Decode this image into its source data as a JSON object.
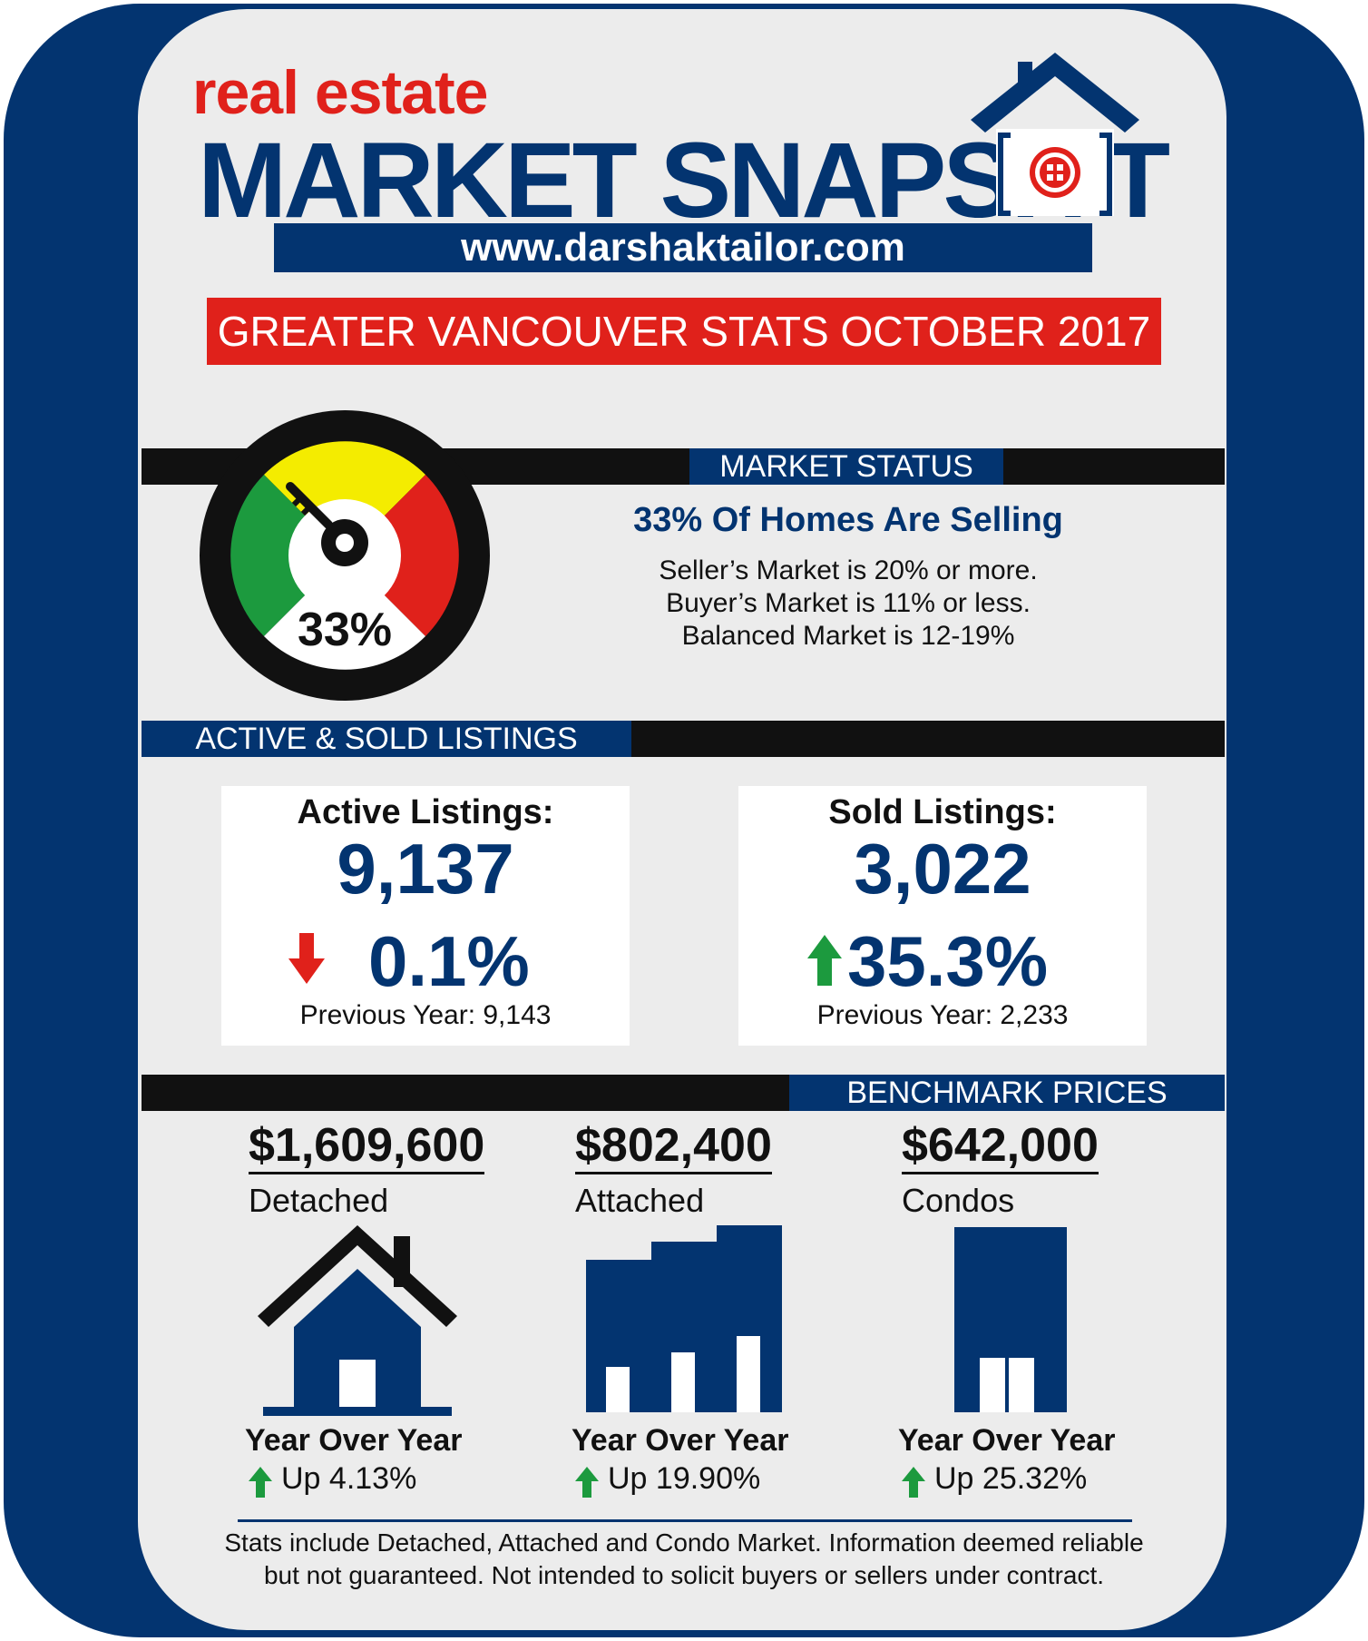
{
  "header": {
    "title_small": "real estate",
    "title_big": "MARKET SNAPSH",
    "title_big_end": "T",
    "url": "www.darshaktailor.com",
    "banner": "GREATER VANCOUVER STATS OCTOBER 2017"
  },
  "market_status": {
    "label": "MARKET STATUS",
    "headline": "33% Of Homes Are Selling",
    "line1": "Seller’s Market is 20% or more.",
    "line2": "Buyer’s Market is 11% or less.",
    "line3": "Balanced Market is 12-19%",
    "gauge_value": "33%",
    "colors": {
      "green": "#1c9a3e",
      "yellow": "#f4ec00",
      "red": "#e0211b"
    }
  },
  "listings": {
    "label": "ACTIVE & SOLD LISTINGS",
    "active": {
      "title": "Active Listings:",
      "value": "9,137",
      "change": "0.1%",
      "direction": "down",
      "previous": "Previous Year: 9,143"
    },
    "sold": {
      "title": "Sold Listings:",
      "value": "3,022",
      "change": "35.3%",
      "direction": "up",
      "previous": "Previous Year: 2,233"
    }
  },
  "benchmark": {
    "label": "BENCHMARK PRICES",
    "items": [
      {
        "price": "$1,609,600",
        "type": "Detached",
        "yoy_label": "Year Over Year",
        "yoy": "Up 4.13%",
        "icon": "house-icon"
      },
      {
        "price": "$802,400",
        "type": "Attached",
        "yoy_label": "Year Over Year",
        "yoy": "Up 19.90%",
        "icon": "townhouse-icon"
      },
      {
        "price": "$642,000",
        "type": "Condos",
        "yoy_label": "Year Over Year",
        "yoy": "Up 25.32%",
        "icon": "condo-icon"
      }
    ]
  },
  "footer": {
    "line1": "Stats include Detached, Attached and Condo Market. Information deemed reliable",
    "line2": "but not guaranteed. Not intended to solicit buyers or sellers under contract."
  }
}
